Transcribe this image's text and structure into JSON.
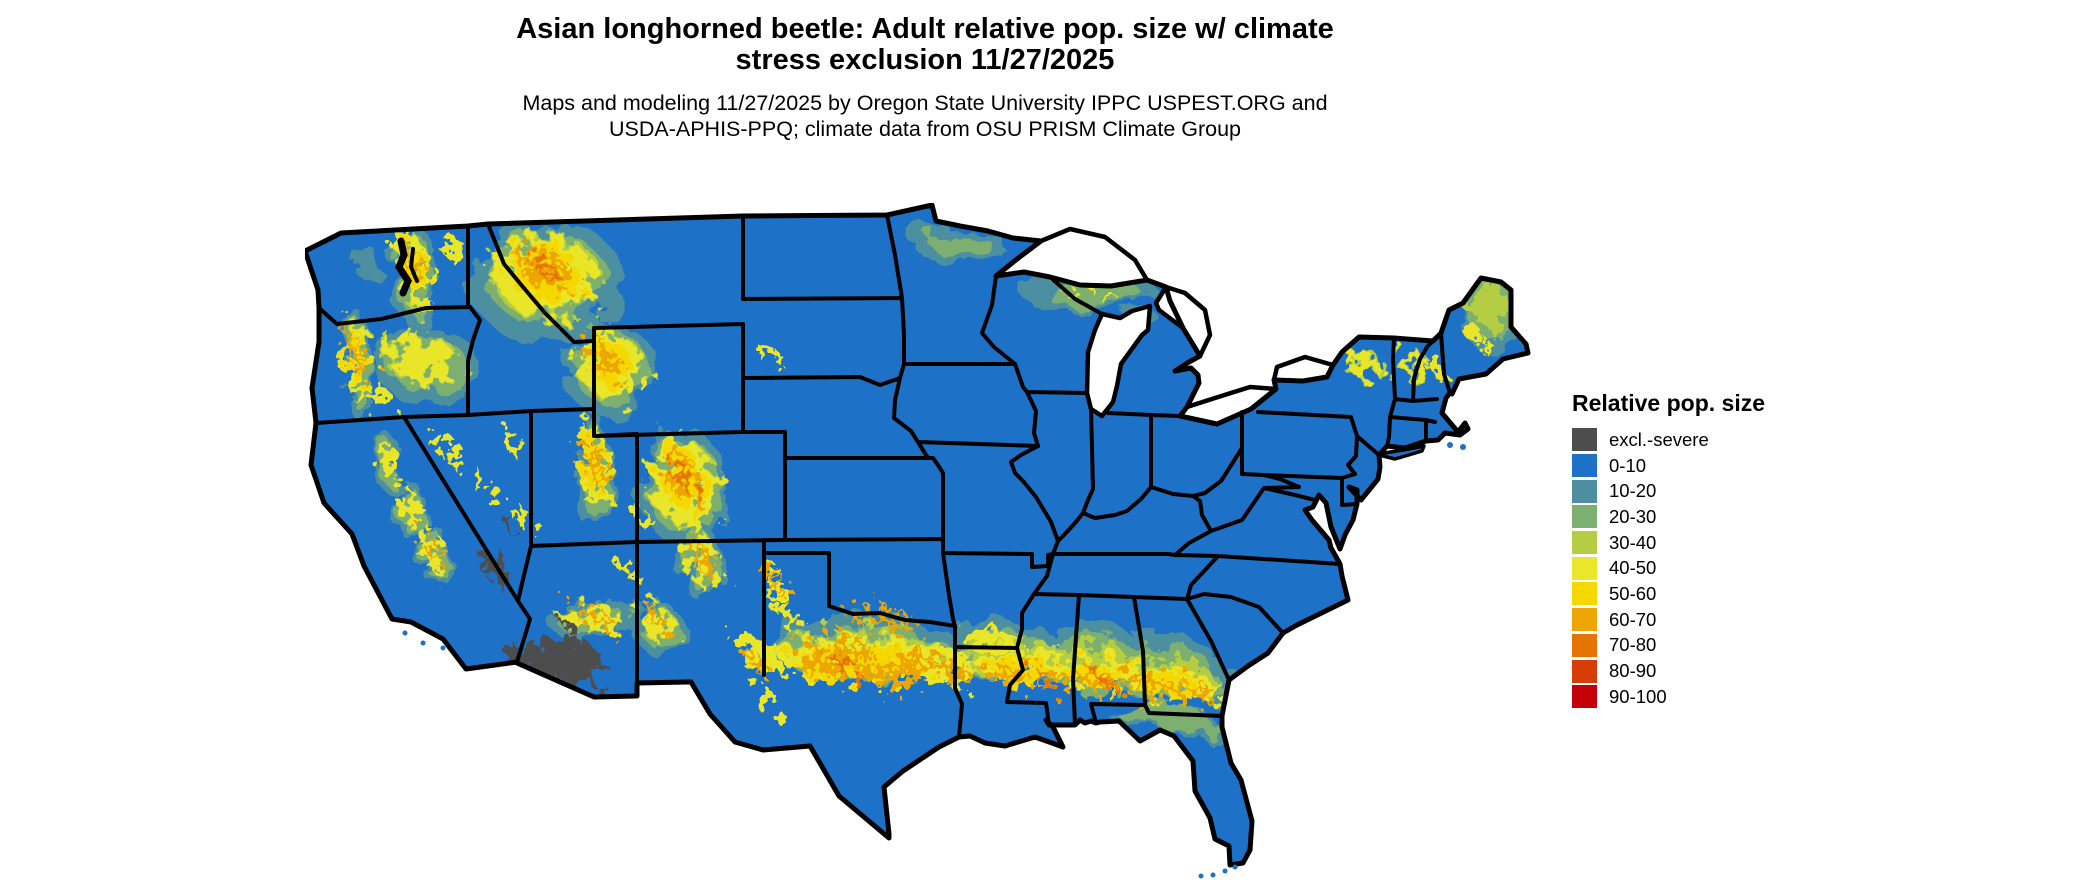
{
  "header": {
    "title_line1": "Asian longhorned beetle: Adult relative pop. size w/ climate",
    "title_line2": "stress exclusion 11/27/2025",
    "subtitle_line1": "Maps and modeling 11/27/2025 by Oregon State University IPPC USPEST.ORG and",
    "subtitle_line2": "USDA-APHIS-PPQ; climate data from OSU PRISM Climate Group"
  },
  "legend": {
    "title": "Relative pop. size",
    "items": [
      {
        "label": "excl.-severe",
        "color": "#4d4d4d"
      },
      {
        "label": "0-10",
        "color": "#1d71c7"
      },
      {
        "label": "10-20",
        "color": "#4c8fa0"
      },
      {
        "label": "20-30",
        "color": "#7db070"
      },
      {
        "label": "30-40",
        "color": "#b4cd42"
      },
      {
        "label": "40-50",
        "color": "#e9e62b"
      },
      {
        "label": "50-60",
        "color": "#f5d800"
      },
      {
        "label": "60-70",
        "color": "#eda603"
      },
      {
        "label": "70-80",
        "color": "#e67403"
      },
      {
        "label": "80-90",
        "color": "#d63e06"
      },
      {
        "label": "90-100",
        "color": "#c40109"
      }
    ]
  },
  "map": {
    "water_color": "#ffffff",
    "border_color": "#000000",
    "base_class": "0-10"
  }
}
